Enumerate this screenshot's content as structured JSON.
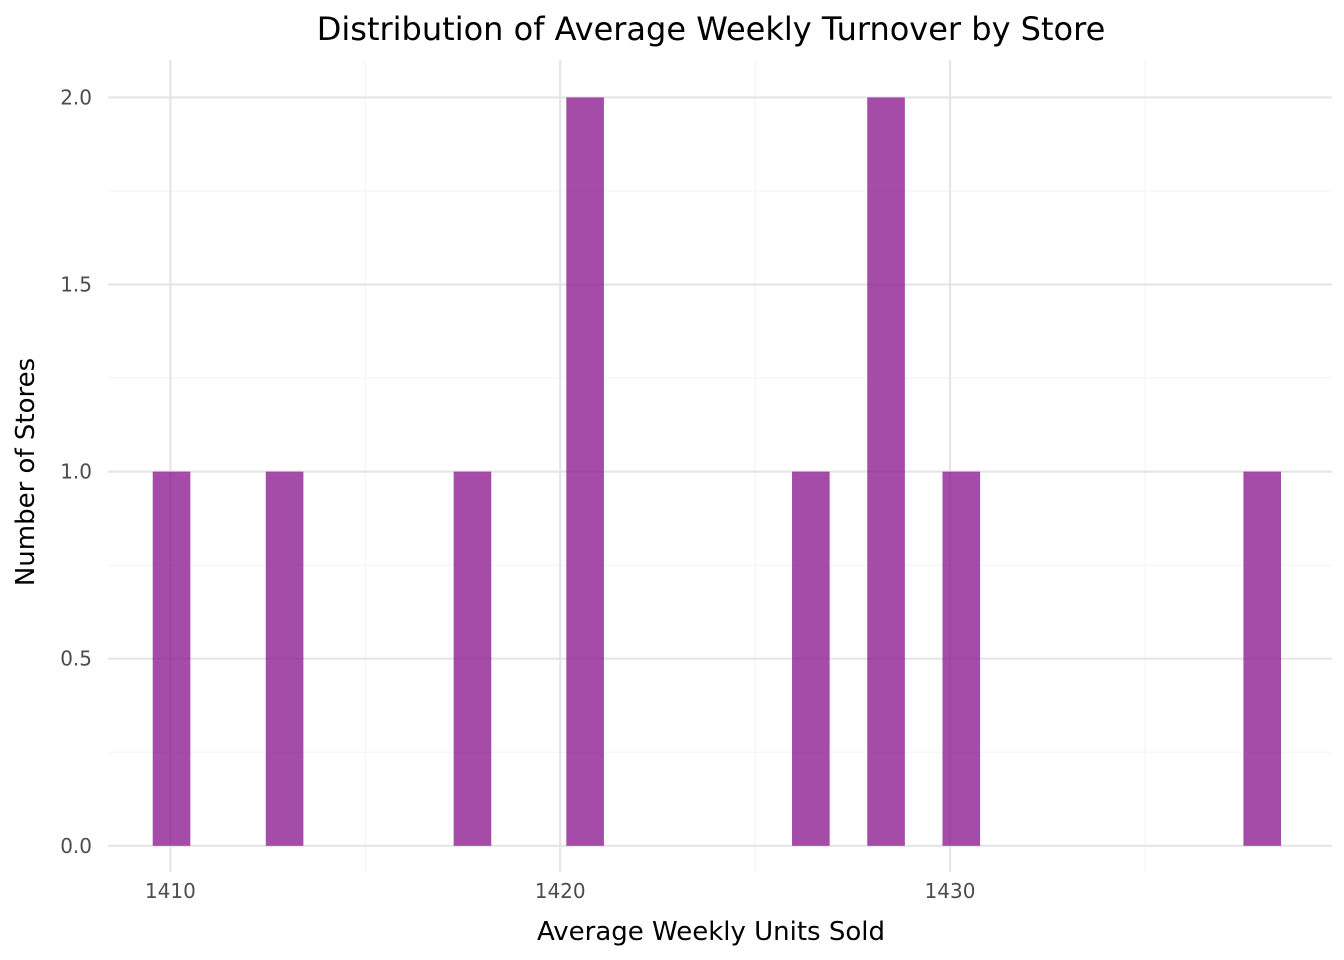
{
  "chart_data": {
    "type": "histogram",
    "title": "Distribution of Average Weekly Turnover by Store",
    "xlabel": "Average Weekly Units Sold",
    "ylabel": "Number of Stores",
    "xlim": [
      1408.4,
      1439.8
    ],
    "ylim": [
      -0.07,
      2.1
    ],
    "x_ticks": [
      1410,
      1420,
      1430
    ],
    "y_ticks": [
      0.0,
      0.5,
      1.0,
      1.5,
      2.0
    ],
    "x_tick_labels": [
      "1410",
      "1420",
      "1430"
    ],
    "y_tick_labels": [
      "0.0",
      "0.5",
      "1.0",
      "1.5",
      "2.0"
    ],
    "bin_width": 0.965,
    "grid": true,
    "legend": "none",
    "bar_color": "#8b1a8e",
    "bins": [
      {
        "center": 1410.03,
        "count": 1
      },
      {
        "center": 1412.93,
        "count": 1
      },
      {
        "center": 1417.75,
        "count": 1
      },
      {
        "center": 1420.64,
        "count": 2
      },
      {
        "center": 1426.43,
        "count": 1
      },
      {
        "center": 1428.36,
        "count": 2
      },
      {
        "center": 1430.29,
        "count": 1
      },
      {
        "center": 1438.01,
        "count": 1
      }
    ]
  }
}
